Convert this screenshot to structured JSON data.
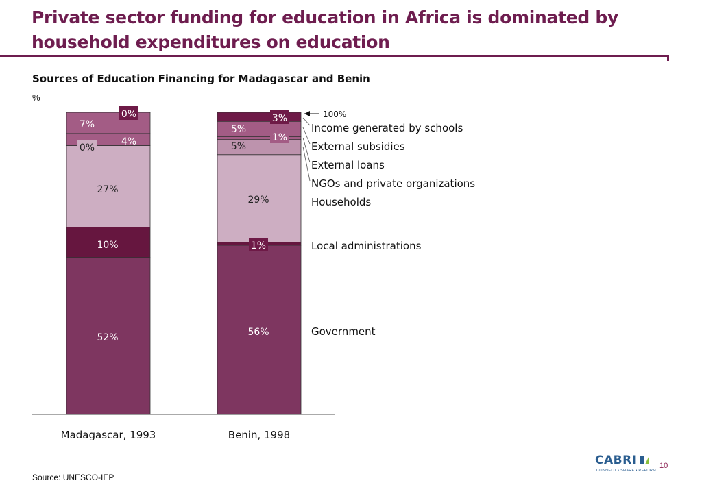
{
  "slide": {
    "title": "Private sector funding for education in Africa is dominated by household expenditures on education",
    "subtitle": "Sources of Education Financing for Madagascar and Benin",
    "unit": "%",
    "source": "Source: UNESCO-IEP",
    "page_number": "10"
  },
  "logo": {
    "name": "CABRI",
    "tagline": "CONNECT • SHARE • REFORM",
    "colors": [
      "#2a5d8f",
      "#8bbf3c"
    ]
  },
  "colors": {
    "accent": "#6e1d4f",
    "government": "#7e3660",
    "local_administrations": "#66163f",
    "households": "#cdaec2",
    "ngos": "#bd93ad",
    "external_loans": "#a35c85",
    "external_subsidies": "#a35c85",
    "income_schools": "#6e1a47"
  },
  "chart_data": {
    "type": "bar",
    "stacked": true,
    "categories": [
      "Madagascar, 1993",
      "Benin, 1998"
    ],
    "series": [
      {
        "name": "Government",
        "values": [
          52,
          56
        ],
        "labels": [
          "52%",
          "56%"
        ]
      },
      {
        "name": "Local administrations",
        "values": [
          10,
          1
        ],
        "labels": [
          "10%",
          "1%"
        ]
      },
      {
        "name": "Households",
        "values": [
          27,
          29
        ],
        "labels": [
          "27%",
          "29%"
        ]
      },
      {
        "name": "NGOs and private organizations",
        "values": [
          0,
          5
        ],
        "labels": [
          "0%",
          "5%"
        ]
      },
      {
        "name": "External loans",
        "values": [
          4,
          1
        ],
        "labels": [
          "4%",
          "1%"
        ]
      },
      {
        "name": "External subsidies",
        "values": [
          7,
          5
        ],
        "labels": [
          "7%",
          "5%"
        ]
      },
      {
        "name": "Income generated by schools",
        "values": [
          0,
          3
        ],
        "labels": [
          "0%",
          "3%"
        ]
      }
    ],
    "total_label": "100%",
    "ylim": [
      0,
      100
    ],
    "legend_placement": "right",
    "grid": false
  }
}
